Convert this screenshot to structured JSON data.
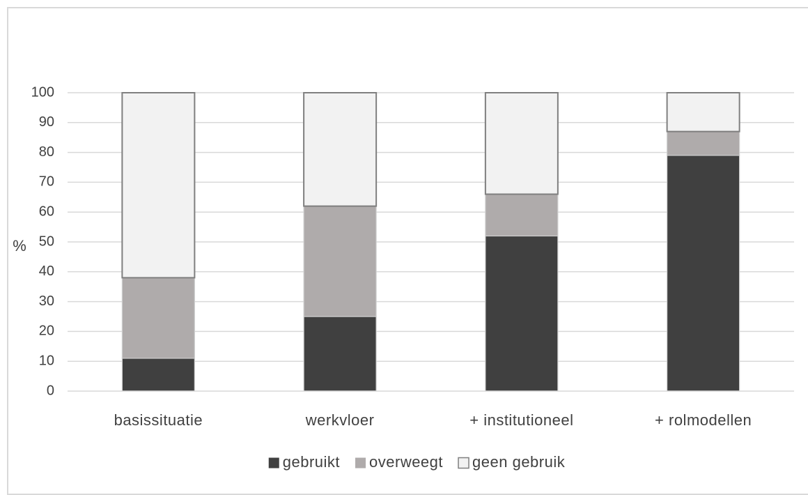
{
  "chart_data": {
    "type": "bar",
    "stacked": true,
    "categories": [
      "basissituatie",
      "werkvloer",
      "+ institutioneel",
      "+ rolmodellen"
    ],
    "series": [
      {
        "name": "gebruikt",
        "values": [
          11,
          25,
          52,
          79
        ],
        "color": "#404040"
      },
      {
        "name": "overweegt",
        "values": [
          27,
          37,
          14,
          8
        ],
        "color": "#afabab"
      },
      {
        "name": "geen gebruik",
        "values": [
          62,
          38,
          34,
          13
        ],
        "color": "#f2f2f2"
      }
    ],
    "ylabel": "%",
    "ylim": [
      0,
      100
    ],
    "yticks": [
      0,
      10,
      20,
      30,
      40,
      50,
      60,
      70,
      80,
      90,
      100
    ],
    "grid": true,
    "legend_position": "bottom"
  }
}
